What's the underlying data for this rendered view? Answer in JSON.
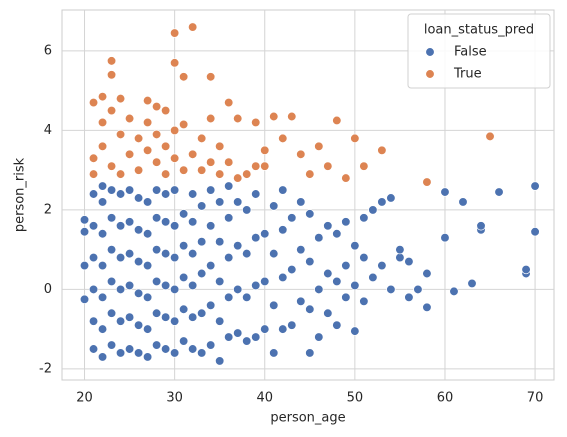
{
  "chart_data": {
    "type": "scatter",
    "x_label": "person_age",
    "y_label": "person_risk",
    "xlim": [
      17.5,
      72.1
    ],
    "ylim": [
      -2.28,
      7.03
    ],
    "xticks": [
      20,
      30,
      40,
      50,
      60,
      70
    ],
    "yticks": [
      -2,
      0,
      2,
      4,
      6
    ],
    "grid": true,
    "legend": "upper right",
    "legend_title": "loan_status_pred",
    "series": [
      {
        "name": "False",
        "color": "#4c72b0",
        "x": [
          20,
          20,
          20,
          20,
          21,
          21,
          21,
          21,
          21,
          21,
          22,
          22,
          22,
          22,
          22,
          22,
          22,
          23,
          23,
          23,
          23,
          23,
          23,
          24,
          24,
          24,
          24,
          24,
          24,
          25,
          25,
          25,
          25,
          25,
          25,
          26,
          26,
          26,
          26,
          26,
          26,
          27,
          27,
          27,
          27,
          27,
          27,
          28,
          28,
          28,
          28,
          28,
          28,
          29,
          29,
          29,
          29,
          29,
          29,
          30,
          30,
          30,
          30,
          30,
          30,
          31,
          31,
          31,
          31,
          31,
          32,
          32,
          32,
          32,
          32,
          32,
          33,
          33,
          33,
          33,
          33,
          34,
          34,
          34,
          34,
          34,
          35,
          35,
          35,
          35,
          35,
          36,
          36,
          36,
          36,
          36,
          37,
          37,
          37,
          37,
          38,
          38,
          38,
          38,
          39,
          39,
          39,
          39,
          40,
          40,
          40,
          41,
          41,
          41,
          41,
          42,
          42,
          42,
          42,
          43,
          43,
          43,
          44,
          44,
          44,
          45,
          45,
          45,
          45,
          46,
          46,
          46,
          47,
          47,
          47,
          48,
          48,
          48,
          49,
          49,
          49,
          50,
          50,
          50,
          51,
          51,
          51,
          52,
          52,
          53,
          53,
          54,
          54,
          55,
          55,
          56,
          56,
          57,
          58,
          58,
          60,
          60,
          61,
          62,
          63,
          64,
          64,
          66,
          69,
          69,
          70,
          70
        ],
        "values": [
          -0.25,
          0.6,
          1.45,
          1.75,
          -1.5,
          -0.8,
          0,
          0.8,
          1.6,
          2.4,
          -1.7,
          -1,
          -0.2,
          0.6,
          1.4,
          2.2,
          2.6,
          -1.4,
          -0.6,
          0.2,
          1,
          1.8,
          2.5,
          -1.6,
          -0.8,
          0,
          0.8,
          1.6,
          2.4,
          -1.5,
          -0.7,
          0.1,
          0.9,
          1.7,
          2.5,
          -1.6,
          -0.9,
          -0.1,
          0.7,
          1.5,
          2.3,
          -1.7,
          -1,
          -0.2,
          0.6,
          1.4,
          2.2,
          -1.4,
          -0.6,
          0.2,
          1,
          1.8,
          2.5,
          -1.5,
          -0.7,
          0.1,
          0.9,
          1.7,
          2.4,
          -1.6,
          -0.8,
          0,
          0.8,
          1.6,
          2.5,
          -1.3,
          -0.5,
          0.3,
          1.1,
          1.9,
          -1.5,
          -0.7,
          0.1,
          0.9,
          1.7,
          2.4,
          -1.6,
          -0.6,
          0.4,
          1.2,
          2.1,
          -1.4,
          -0.4,
          0.6,
          1.6,
          2.5,
          -1.8,
          -0.8,
          0.2,
          1.2,
          2.2,
          -1.2,
          -0.2,
          0.8,
          1.8,
          2.6,
          -1.1,
          0,
          1.1,
          2.2,
          -1.3,
          -0.2,
          0.9,
          2,
          -1.2,
          0.1,
          1.3,
          2.4,
          -1,
          0.2,
          1.4,
          -1.6,
          -0.4,
          0.9,
          2.1,
          -1,
          0.3,
          1.5,
          2.5,
          -0.9,
          0.5,
          1.8,
          -0.3,
          1,
          2.2,
          -1.6,
          -0.5,
          0.7,
          1.9,
          -1.2,
          0,
          1.3,
          -0.6,
          0.4,
          1.6,
          -0.9,
          0.2,
          1.4,
          -0.2,
          0.6,
          1.7,
          -1.05,
          0.1,
          1.1,
          -0.3,
          0.8,
          1.8,
          0.3,
          2,
          0.6,
          2.2,
          0,
          2.3,
          0.8,
          1,
          -0.2,
          0.7,
          0,
          -0.45,
          0.4,
          1.3,
          2.45,
          -0.05,
          2.2,
          0.15,
          1.5,
          1.6,
          2.45,
          0.4,
          0.5,
          1.45,
          2.6
        ]
      },
      {
        "name": "True",
        "color": "#dd8452",
        "x": [
          30,
          32,
          23,
          30,
          31,
          34,
          23,
          21,
          22,
          24,
          27,
          28,
          29,
          36,
          37,
          39,
          40,
          41,
          43,
          42,
          44,
          48,
          50,
          46,
          47,
          49,
          51,
          53,
          58,
          65,
          39,
          40,
          45,
          35,
          33,
          31,
          21,
          21,
          22,
          22,
          23,
          23,
          24,
          24,
          25,
          25,
          26,
          26,
          27,
          27,
          28,
          28,
          29,
          29,
          30,
          30,
          31,
          32,
          33,
          34,
          35,
          36,
          37,
          38,
          34
        ],
        "values": [
          6.45,
          6.6,
          5.75,
          5.7,
          5.35,
          5.35,
          5.4,
          4.7,
          4.85,
          4.8,
          4.75,
          4.6,
          4.5,
          4.7,
          4.3,
          4.2,
          3.5,
          4.35,
          4.35,
          3.8,
          3.4,
          4.25,
          3.8,
          3.6,
          3.1,
          2.8,
          3.1,
          3.5,
          2.7,
          3.85,
          3.1,
          3.1,
          2.9,
          3.6,
          3.8,
          4.15,
          3.3,
          2.9,
          3.6,
          4.2,
          3.1,
          4.5,
          3.9,
          2.9,
          3.4,
          4.3,
          3.0,
          3.8,
          3.5,
          4.2,
          3.2,
          3.9,
          2.9,
          3.6,
          3.3,
          4.0,
          3.0,
          3.4,
          3.0,
          3.2,
          2.9,
          3.2,
          2.8,
          2.9,
          4.3
        ]
      }
    ]
  }
}
